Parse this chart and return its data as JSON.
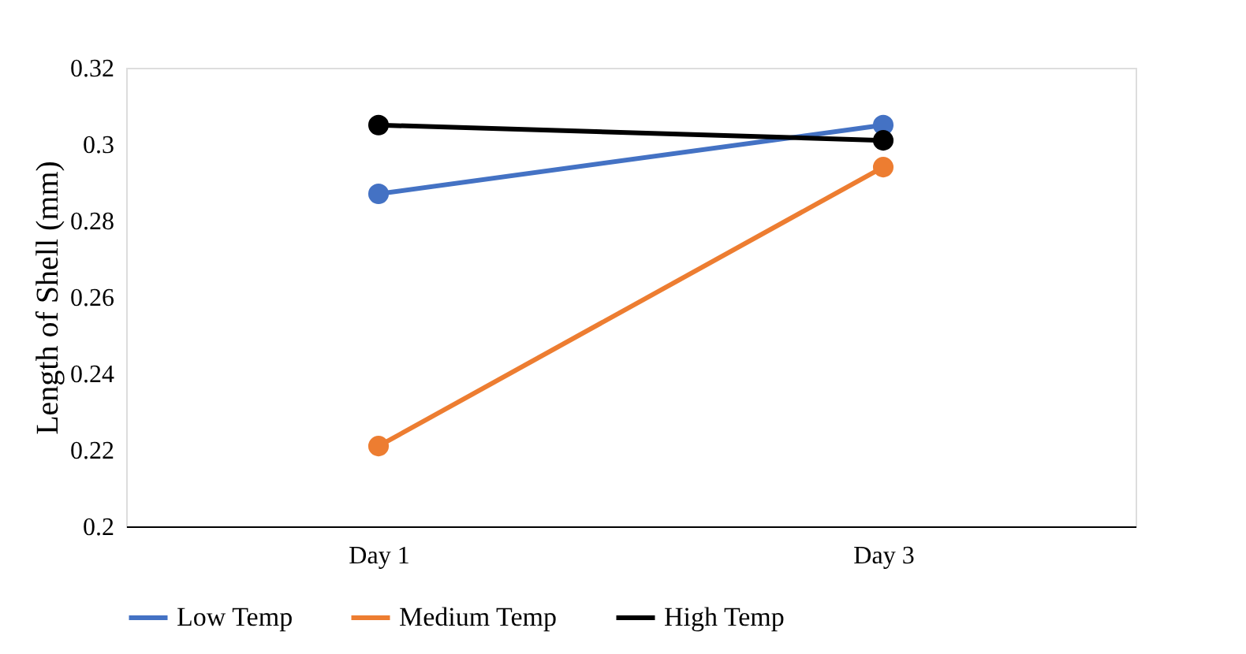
{
  "chart_data": {
    "type": "line",
    "ylabel": "Length of Shell (mm)",
    "categories": [
      "Day 1",
      "Day 3"
    ],
    "series": [
      {
        "name": "Low Temp",
        "color": "#4472c4",
        "values": [
          0.287,
          0.305
        ]
      },
      {
        "name": "Medium Temp",
        "color": "#ed7d31",
        "values": [
          0.221,
          0.294
        ]
      },
      {
        "name": "High Temp",
        "color": "#000000",
        "values": [
          0.305,
          0.301
        ]
      }
    ],
    "ylim": [
      0.2,
      0.32
    ],
    "yticks": [
      0.2,
      0.22,
      0.24,
      0.26,
      0.28,
      0.3,
      0.32
    ],
    "grid": false,
    "legend": "bottom",
    "marker": "circle",
    "line_style": "solid"
  }
}
